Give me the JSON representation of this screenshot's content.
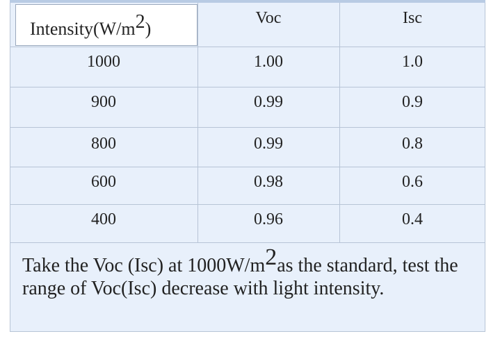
{
  "table": {
    "headers": {
      "intensity_prefix": "Intensity(W/m",
      "intensity_sup": "2",
      "intensity_suffix": ")",
      "voc": "Voc",
      "isc": "Isc"
    },
    "rows": [
      {
        "intensity": "1000",
        "voc": "1.00",
        "isc": "1.0"
      },
      {
        "intensity": "900",
        "voc": "0.99",
        "isc": "0.9"
      },
      {
        "intensity": "800",
        "voc": "0.99",
        "isc": "0.8"
      },
      {
        "intensity": "600",
        "voc": "0.98",
        "isc": "0.6"
      },
      {
        "intensity": "400",
        "voc": "0.96",
        "isc": "0.4"
      }
    ]
  },
  "note": {
    "part1": "Take the Voc (Isc) at 1000W/m",
    "sup": "2",
    "part2": "as the standard, test the range of Voc(Isc) decrease with light intensity."
  },
  "colors": {
    "background": "#e8f0fb",
    "grid": "#b7c4d6",
    "text": "#222222"
  }
}
